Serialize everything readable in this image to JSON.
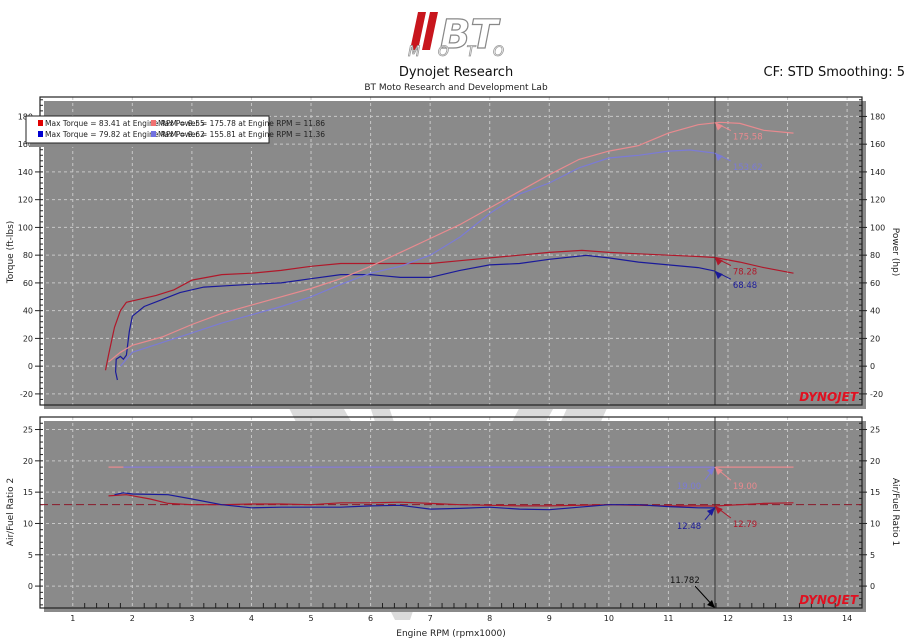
{
  "header": {
    "logo_text": "BT MOTO",
    "title": "Dynojet Research",
    "subtitle": "BT Moto Research and Development Lab",
    "settings": "CF: STD Smoothing: 5",
    "brand_watermark": "DYNOJET"
  },
  "colors": {
    "run1_torque": "#b0182a",
    "run1_power": "#e88a8f",
    "run2_torque": "#1a1a9a",
    "run2_power": "#7b7bd6",
    "cursor": "#333333",
    "watermark": "#d3d3d3"
  },
  "chart_data": [
    {
      "type": "line",
      "xlabel": "Engine RPM (rpmx1000)",
      "ylabel": "Torque (ft-lbs)",
      "ylabel_right": "Power (hp)",
      "xlim": [
        0.45,
        14.25
      ],
      "ylim": [
        -28,
        194
      ],
      "xticks": [
        "1",
        "2",
        "3",
        "4",
        "5",
        "6",
        "7",
        "8",
        "9",
        "10",
        "11",
        "12",
        "13",
        "14"
      ],
      "yticks": [
        "-20",
        "0",
        "20",
        "40",
        "60",
        "80",
        "100",
        "120",
        "140",
        "160",
        "180"
      ],
      "grid": true,
      "legend_placement": "top-left",
      "legend": [
        {
          "text": "Max Torque = 83.41 at Engine RPM = 9.55",
          "color": "#e00000"
        },
        {
          "text": "Max Power = 175.78 at Engine RPM = 11.86",
          "color": "#f07070"
        },
        {
          "text": "Max Torque = 79.82 at Engine RPM = 9.62",
          "color": "#0000d0"
        },
        {
          "text": "Max Power = 155.81 at Engine RPM = 11.36",
          "color": "#7070e0"
        }
      ],
      "series": [
        {
          "key": "run1_torque",
          "x": [
            1.55,
            1.6,
            1.7,
            1.8,
            1.9,
            2.1,
            2.4,
            2.7,
            3.0,
            3.5,
            4.0,
            4.5,
            5.0,
            5.5,
            6.0,
            6.5,
            7.0,
            7.5,
            8.0,
            8.5,
            9.0,
            9.55,
            10.0,
            10.5,
            11.0,
            11.5,
            11.78,
            12.2,
            12.6,
            13.1
          ],
          "y": [
            -3,
            8,
            28,
            40,
            46,
            48,
            51,
            55,
            62,
            66,
            67,
            69,
            72,
            74,
            74,
            74,
            74,
            76,
            78,
            80,
            82,
            83.4,
            82,
            81,
            80,
            79,
            78.3,
            75,
            71,
            67
          ]
        },
        {
          "key": "run2_torque",
          "x": [
            1.75,
            1.72,
            1.73,
            1.8,
            1.85,
            1.9,
            1.95,
            2.0,
            2.2,
            2.5,
            2.8,
            3.2,
            3.6,
            4.0,
            4.5,
            5.0,
            5.5,
            6.0,
            6.5,
            7.0,
            7.5,
            8.0,
            8.5,
            9.0,
            9.62,
            10.0,
            10.5,
            11.0,
            11.5,
            11.78
          ],
          "y": [
            -10,
            -4,
            5,
            7,
            5,
            8,
            25,
            36,
            43,
            48,
            53,
            57,
            58,
            59,
            60,
            63,
            66,
            66,
            64,
            64,
            69,
            73,
            74,
            77,
            79.8,
            78,
            75,
            73,
            71,
            68.5
          ]
        },
        {
          "key": "run1_power",
          "x": [
            1.6,
            1.8,
            2.0,
            2.5,
            3.0,
            3.5,
            4.0,
            4.5,
            5.0,
            5.5,
            6.0,
            6.5,
            7.0,
            7.5,
            8.0,
            8.5,
            9.0,
            9.5,
            10.0,
            10.5,
            11.0,
            11.5,
            11.86,
            12.2,
            12.6,
            13.1
          ],
          "y": [
            3,
            10,
            15,
            21,
            30,
            38,
            44,
            50,
            56,
            63,
            72,
            82,
            92,
            102,
            114,
            126,
            138,
            149,
            155,
            159,
            168,
            174,
            175.8,
            175,
            170,
            168
          ]
        },
        {
          "key": "run2_power",
          "x": [
            1.8,
            1.9,
            2.0,
            2.5,
            3.0,
            3.5,
            4.0,
            4.5,
            5.0,
            5.5,
            6.0,
            6.5,
            7.0,
            7.5,
            8.0,
            8.5,
            9.0,
            9.5,
            10.0,
            10.5,
            11.0,
            11.36,
            11.78
          ],
          "y": [
            0,
            5,
            10,
            17,
            24,
            31,
            37,
            43,
            50,
            59,
            67,
            72,
            80,
            93,
            110,
            124,
            132,
            143,
            150,
            152,
            155,
            155.8,
            153.6
          ]
        }
      ],
      "cursor": {
        "x": 11.782
      },
      "annotations": [
        {
          "text": "175.58",
          "x": 11.78,
          "y": 175.58,
          "key": "run1_power"
        },
        {
          "text": "153.62",
          "x": 11.78,
          "y": 153.62,
          "key": "run2_power"
        },
        {
          "text": "78.28",
          "x": 11.78,
          "y": 78.28,
          "key": "run1_torque"
        },
        {
          "text": "68.48",
          "x": 11.78,
          "y": 68.48,
          "key": "run2_torque"
        }
      ]
    },
    {
      "type": "line",
      "xlabel": "Engine RPM (rpmx1000)",
      "ylabel": "Air/Fuel Ratio 2",
      "ylabel_right": "Air/Fuel Ratio 1",
      "xlim": [
        0.45,
        14.25
      ],
      "ylim": [
        -3.5,
        27
      ],
      "yticks": [
        "0",
        "5",
        "10",
        "15",
        "20",
        "25"
      ],
      "grid": true,
      "reference_line": {
        "y": 13.0,
        "style": "dashed",
        "color": "#8b1a2a"
      },
      "series": [
        {
          "key": "run1_power",
          "x": [
            1.6,
            13.1
          ],
          "y": [
            19,
            19
          ]
        },
        {
          "key": "run2_power",
          "x": [
            1.85,
            11.78
          ],
          "y": [
            19,
            19
          ]
        },
        {
          "key": "run1_torque",
          "x": [
            1.6,
            1.9,
            2.3,
            2.6,
            3.0,
            3.5,
            4.0,
            4.5,
            5.0,
            5.5,
            6.0,
            6.5,
            7.0,
            7.5,
            8.0,
            8.5,
            9.0,
            9.5,
            10.0,
            10.5,
            11.0,
            11.5,
            11.78,
            12.2,
            12.6,
            13.1
          ],
          "y": [
            14.4,
            14.6,
            13.9,
            13.2,
            13.0,
            13.0,
            13.1,
            13.1,
            13.0,
            13.3,
            13.3,
            13.4,
            13.2,
            13.0,
            12.9,
            12.8,
            12.8,
            12.9,
            13.0,
            12.9,
            12.8,
            12.8,
            12.79,
            13.0,
            13.2,
            13.3
          ]
        },
        {
          "key": "run2_torque",
          "x": [
            1.7,
            1.85,
            2.0,
            2.6,
            3.0,
            3.5,
            4.0,
            4.5,
            5.0,
            5.5,
            6.0,
            6.5,
            7.0,
            7.5,
            8.0,
            8.5,
            9.0,
            9.5,
            10.0,
            10.5,
            11.0,
            11.5,
            11.78
          ],
          "y": [
            14.6,
            14.9,
            14.7,
            14.6,
            13.9,
            13.0,
            12.5,
            12.6,
            12.6,
            12.6,
            12.8,
            12.9,
            12.3,
            12.4,
            12.6,
            12.3,
            12.2,
            12.6,
            13.0,
            13.0,
            12.7,
            12.5,
            12.48
          ]
        }
      ],
      "cursor": {
        "x": 11.782,
        "label": "11.782"
      },
      "annotations": [
        {
          "text": "19.00",
          "x": 11.78,
          "y": 19.0,
          "key": "run2_power",
          "side": "left"
        },
        {
          "text": "19.00",
          "x": 11.78,
          "y": 19.0,
          "key": "run1_power",
          "side": "right"
        },
        {
          "text": "12.48",
          "x": 11.78,
          "y": 12.48,
          "key": "run2_torque",
          "side": "left"
        },
        {
          "text": "12.79",
          "x": 11.78,
          "y": 12.79,
          "key": "run1_torque",
          "side": "right"
        }
      ]
    }
  ]
}
